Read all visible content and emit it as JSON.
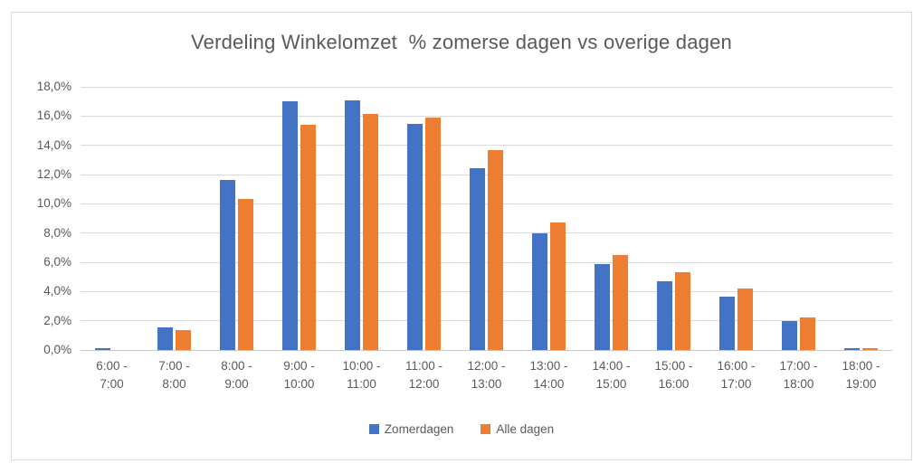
{
  "chart": {
    "title": "Verdeling Winkelomzet  % zomerse dagen vs overige dagen"
  },
  "chart_data": {
    "type": "bar",
    "title": "Verdeling Winkelomzet  % zomerse dagen vs overige dagen",
    "categories": [
      "6:00 - 7:00",
      "7:00 - 8:00",
      "8:00 - 9:00",
      "9:00 - 10:00",
      "10:00 - 11:00",
      "11:00 - 12:00",
      "12:00 - 13:00",
      "13:00 - 14:00",
      "14:00 - 15:00",
      "15:00 - 16:00",
      "16:00 - 17:00",
      "17:00 - 18:00",
      "18:00 - 19:00"
    ],
    "series": [
      {
        "name": "Zomerdagen",
        "color": "#4472C4",
        "values": [
          0.1,
          1.55,
          11.6,
          17.0,
          17.1,
          15.45,
          12.45,
          7.95,
          5.85,
          4.7,
          3.65,
          1.95,
          0.15
        ]
      },
      {
        "name": "Alle dagen",
        "color": "#ED7D31",
        "values": [
          0.0,
          1.35,
          10.3,
          15.4,
          16.15,
          15.9,
          13.7,
          8.7,
          6.5,
          5.3,
          4.2,
          2.2,
          0.1
        ]
      }
    ],
    "xlabel": "",
    "ylabel": "",
    "ylim": [
      0,
      18
    ],
    "ytick_step": 2,
    "ytick_labels": [
      "0,0%",
      "2,0%",
      "4,0%",
      "6,0%",
      "8,0%",
      "10,0%",
      "12,0%",
      "14,0%",
      "16,0%",
      "18,0%"
    ],
    "grid": "horizontal",
    "legend_position": "bottom",
    "colors": {
      "grid": "#D9D9D9",
      "baseline": "#C6C6C6",
      "axis_text": "#595959",
      "title_text": "#595959",
      "frame_border": "#D9D9D9"
    }
  }
}
